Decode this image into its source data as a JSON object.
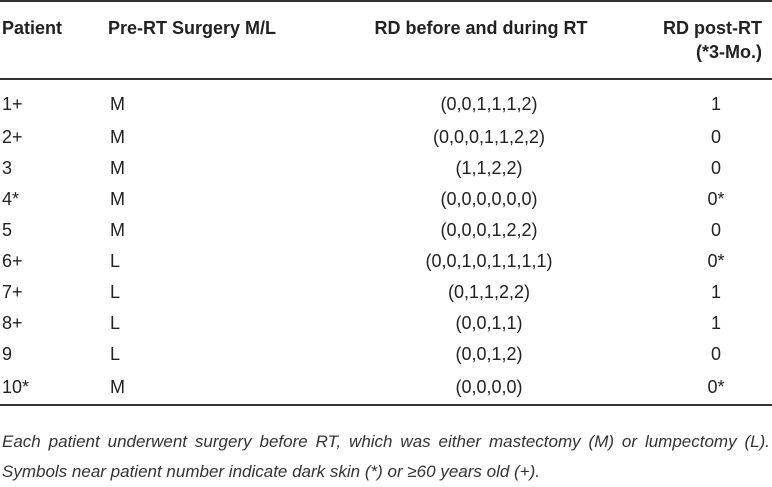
{
  "table": {
    "headers": {
      "patient": "Patient",
      "surgery": "Pre-RT Surgery M/L",
      "rd_during": "RD before and during RT",
      "rd_post_line1": "RD post-RT",
      "rd_post_line2": "(*3-Mo.)"
    },
    "rows": [
      {
        "patient": "1+",
        "surgery": "M",
        "rd_during": "(0,0,1,1,1,2)",
        "rd_post": "1"
      },
      {
        "patient": "2+",
        "surgery": "M",
        "rd_during": "(0,0,0,1,1,2,2)",
        "rd_post": "0"
      },
      {
        "patient": "3",
        "surgery": "M",
        "rd_during": "(1,1,2,2)",
        "rd_post": "0"
      },
      {
        "patient": "4*",
        "surgery": "M",
        "rd_during": "(0,0,0,0,0,0)",
        "rd_post": "0*"
      },
      {
        "patient": "5",
        "surgery": "M",
        "rd_during": "(0,0,0,1,2,2)",
        "rd_post": "0"
      },
      {
        "patient": "6+",
        "surgery": "L",
        "rd_during": "(0,0,1,0,1,1,1,1)",
        "rd_post": "0*"
      },
      {
        "patient": "7+",
        "surgery": "L",
        "rd_during": "(0,1,1,2,2)",
        "rd_post": "1"
      },
      {
        "patient": "8+",
        "surgery": "L",
        "rd_during": "(0,0,1,1)",
        "rd_post": "1"
      },
      {
        "patient": "9",
        "surgery": "L",
        "rd_during": "(0,0,1,2)",
        "rd_post": "0"
      },
      {
        "patient": "10*",
        "surgery": "M",
        "rd_during": "(0,0,0,0)",
        "rd_post": "0*"
      }
    ]
  },
  "footnote": "Each patient underwent surgery before RT, which was either mastectomy (M) or lumpectomy (L). Symbols near patient number indicate dark skin (*) or ≥60 years old (+)."
}
